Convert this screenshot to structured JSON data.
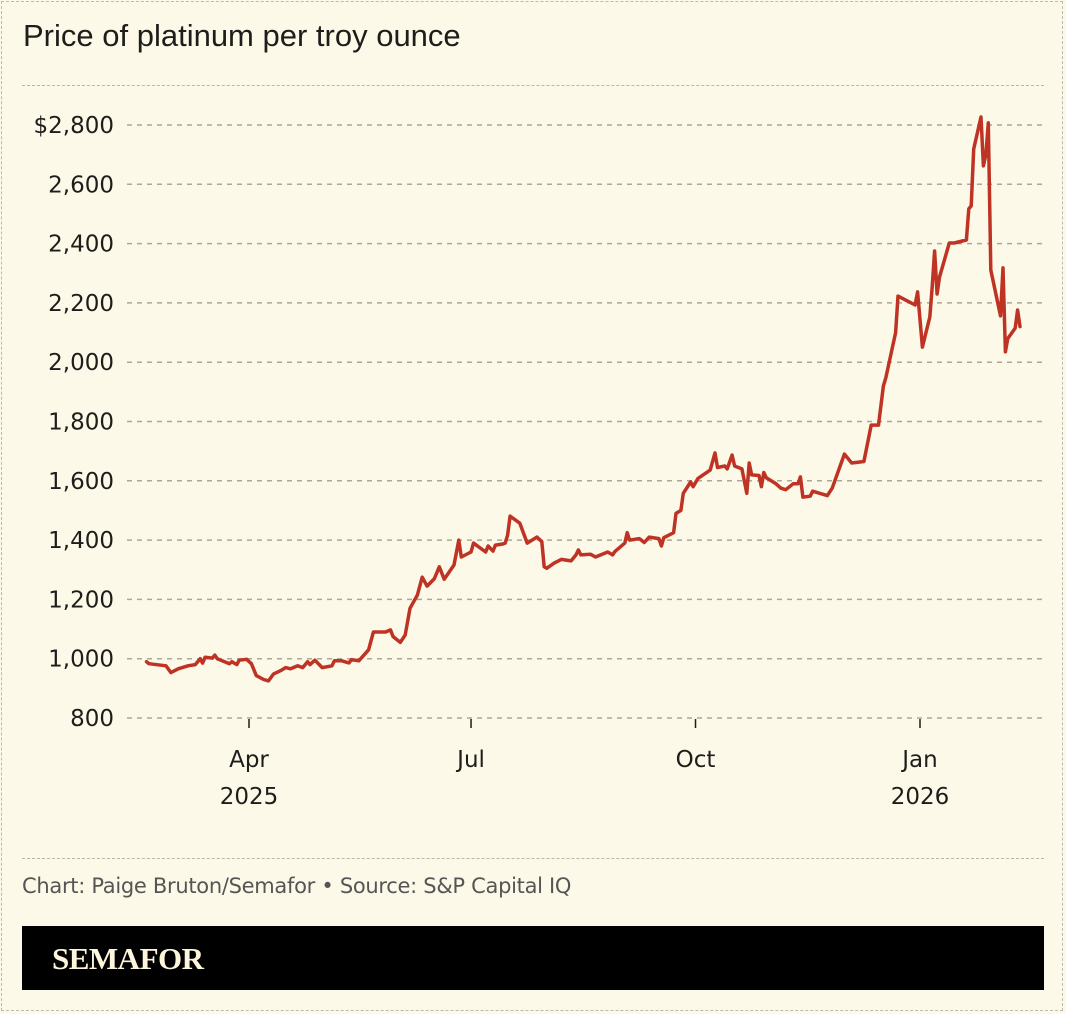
{
  "chart_data": {
    "type": "line",
    "title": "Price of platinum per troy ounce",
    "xlabel": "",
    "ylabel": "",
    "ylim": [
      800,
      2800
    ],
    "yticks": [
      800,
      1000,
      1200,
      1400,
      1600,
      1800,
      2000,
      2200,
      2400,
      2600,
      2800
    ],
    "ytick_labels": [
      "800",
      "1,000",
      "1,200",
      "1,400",
      "1,600",
      "1,800",
      "2,000",
      "2,200",
      "2,400",
      "2,600",
      "$2,800"
    ],
    "xticks": [
      {
        "date": "2025-04-01",
        "label": "Apr",
        "sublabel": "2025"
      },
      {
        "date": "2025-07-01",
        "label": "Jul",
        "sublabel": ""
      },
      {
        "date": "2025-10-01",
        "label": "Oct",
        "sublabel": ""
      },
      {
        "date": "2026-01-01",
        "label": "Jan",
        "sublabel": "2026"
      }
    ],
    "grid": true,
    "line_color": "#bf3324",
    "series": [
      {
        "x": [
          "2025-02-18",
          "2025-02-19",
          "2025-02-26",
          "2025-02-28",
          "2025-03-03",
          "2025-03-07",
          "2025-03-10",
          "2025-03-12",
          "2025-03-13",
          "2025-03-14",
          "2025-03-17",
          "2025-03-18",
          "2025-03-19",
          "2025-03-24",
          "2025-03-25",
          "2025-03-27",
          "2025-03-28",
          "2025-03-31",
          "2025-04-02",
          "2025-04-04",
          "2025-04-07",
          "2025-04-09",
          "2025-04-11",
          "2025-04-14",
          "2025-04-16",
          "2025-04-18",
          "2025-04-21",
          "2025-04-23",
          "2025-04-25",
          "2025-04-26",
          "2025-04-28",
          "2025-05-01",
          "2025-05-05",
          "2025-05-06",
          "2025-05-09",
          "2025-05-12",
          "2025-05-13",
          "2025-05-16",
          "2025-05-20",
          "2025-05-22",
          "2025-05-27",
          "2025-05-29",
          "2025-05-30",
          "2025-06-02",
          "2025-06-04",
          "2025-06-06",
          "2025-06-09",
          "2025-06-11",
          "2025-06-13",
          "2025-06-16",
          "2025-06-18",
          "2025-06-20",
          "2025-06-24",
          "2025-06-26",
          "2025-06-27",
          "2025-07-01",
          "2025-07-02",
          "2025-07-07",
          "2025-07-08",
          "2025-07-10",
          "2025-07-11",
          "2025-07-14",
          "2025-07-15",
          "2025-07-16",
          "2025-07-17",
          "2025-07-21",
          "2025-07-24",
          "2025-07-28",
          "2025-07-30",
          "2025-07-31",
          "2025-08-01",
          "2025-08-04",
          "2025-08-07",
          "2025-08-11",
          "2025-08-13",
          "2025-08-14",
          "2025-08-15",
          "2025-08-19",
          "2025-08-21",
          "2025-08-26",
          "2025-08-28",
          "2025-08-29",
          "2025-09-02",
          "2025-09-03",
          "2025-09-04",
          "2025-09-08",
          "2025-09-10",
          "2025-09-12",
          "2025-09-16",
          "2025-09-17",
          "2025-09-18",
          "2025-09-22",
          "2025-09-23",
          "2025-09-25",
          "2025-09-26",
          "2025-09-29",
          "2025-09-30",
          "2025-10-02",
          "2025-10-07",
          "2025-10-09",
          "2025-10-10",
          "2025-10-13",
          "2025-10-14",
          "2025-10-16",
          "2025-10-17",
          "2025-10-20",
          "2025-10-22",
          "2025-10-23",
          "2025-10-24",
          "2025-10-27",
          "2025-10-28",
          "2025-10-29",
          "2025-10-30",
          "2025-11-03",
          "2025-11-05",
          "2025-11-07",
          "2025-11-10",
          "2025-11-12",
          "2025-11-13",
          "2025-11-14",
          "2025-11-17",
          "2025-11-18",
          "2025-11-24",
          "2025-11-26",
          "2025-12-01",
          "2025-12-04",
          "2025-12-09",
          "2025-12-12",
          "2025-12-15",
          "2025-12-17",
          "2025-12-18",
          "2025-12-22",
          "2025-12-23",
          "2025-12-26",
          "2025-12-30",
          "2025-12-31",
          "2026-01-02",
          "2026-01-05",
          "2026-01-06",
          "2026-01-07",
          "2026-01-08",
          "2026-01-09",
          "2026-01-13",
          "2026-01-15",
          "2026-01-20",
          "2026-01-21",
          "2026-01-22",
          "2026-01-23",
          "2026-01-26",
          "2026-01-27",
          "2026-01-28",
          "2026-01-29",
          "2026-01-30",
          "2026-02-03",
          "2026-02-04",
          "2026-02-05",
          "2026-02-06",
          "2026-02-09",
          "2026-02-10",
          "2026-02-11"
        ],
        "values": [
          990,
          983,
          976,
          953,
          966,
          976,
          980,
          1000,
          985,
          1005,
          1002,
          1012,
          1000,
          983,
          990,
          980,
          995,
          998,
          983,
          943,
          930,
          925,
          948,
          960,
          970,
          966,
          976,
          970,
          990,
          980,
          995,
          970,
          976,
          993,
          993,
          986,
          997,
          993,
          1030,
          1090,
          1090,
          1097,
          1075,
          1055,
          1080,
          1170,
          1215,
          1275,
          1245,
          1270,
          1310,
          1268,
          1316,
          1400,
          1343,
          1360,
          1390,
          1360,
          1380,
          1363,
          1383,
          1387,
          1390,
          1417,
          1481,
          1457,
          1390,
          1410,
          1395,
          1310,
          1305,
          1322,
          1335,
          1330,
          1350,
          1367,
          1350,
          1352,
          1343,
          1360,
          1350,
          1362,
          1390,
          1425,
          1400,
          1405,
          1392,
          1410,
          1405,
          1380,
          1408,
          1425,
          1490,
          1500,
          1558,
          1596,
          1580,
          1608,
          1636,
          1694,
          1645,
          1650,
          1640,
          1687,
          1650,
          1640,
          1558,
          1660,
          1620,
          1618,
          1580,
          1628,
          1610,
          1590,
          1575,
          1570,
          1590,
          1590,
          1613,
          1545,
          1548,
          1565,
          1550,
          1575,
          1690,
          1660,
          1665,
          1788,
          1788,
          1920,
          1947,
          2099,
          2223,
          2210,
          2193,
          2237,
          2051,
          2152,
          2254,
          2375,
          2230,
          2287,
          2402,
          2402,
          2412,
          2517,
          2527,
          2719,
          2827,
          2662,
          2700,
          2807,
          2311,
          2156,
          2318,
          2035,
          2080,
          2115,
          2176,
          2120
        ]
      }
    ]
  },
  "footer": {
    "credit": "Chart: Paige Bruton/Semafor • Source: S&P Capital IQ",
    "brand": "SEMAFOR"
  }
}
